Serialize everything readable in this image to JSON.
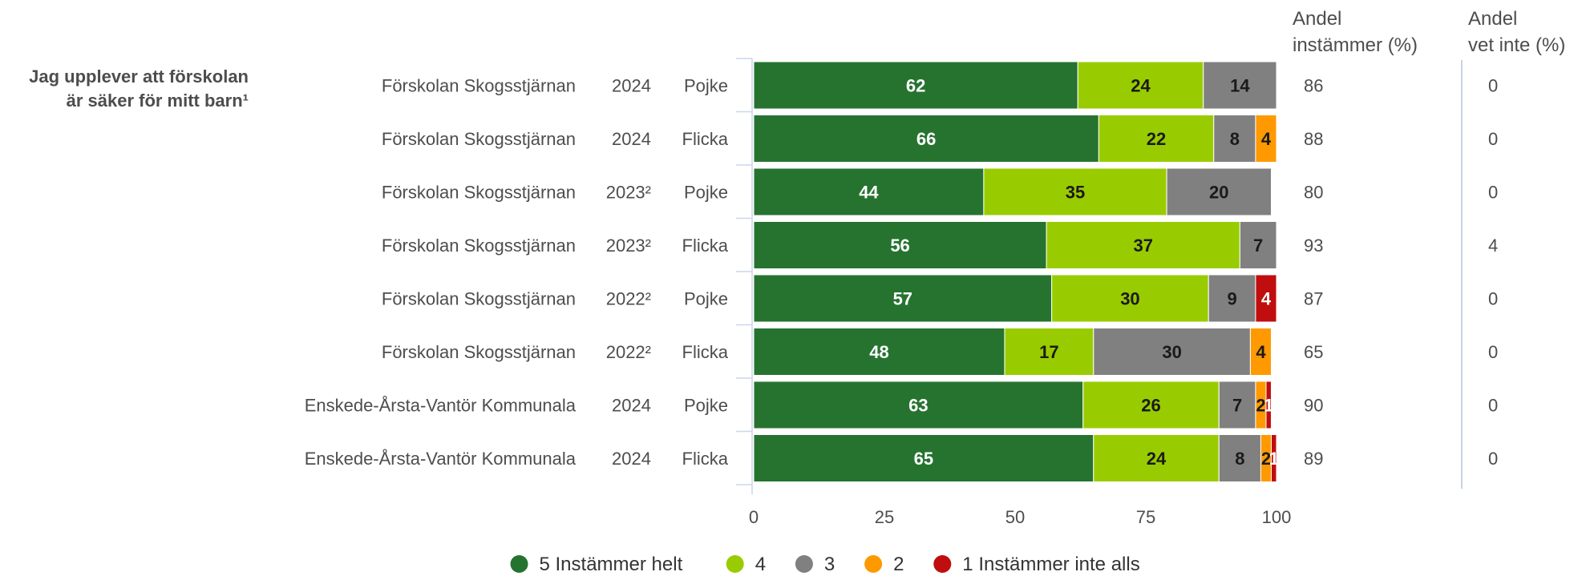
{
  "chart_data": {
    "type": "bar",
    "orientation": "horizontal",
    "stacked": true,
    "question": [
      "Jag upplever att förskolan",
      "är säker för mitt barn¹"
    ],
    "columns": {
      "agree": [
        "Andel",
        "instämmer (%)"
      ],
      "dontknow": [
        "Andel",
        "vet inte (%)"
      ]
    },
    "xlim": [
      0,
      100
    ],
    "xticks": [
      "0",
      "25",
      "50",
      "75",
      "100"
    ],
    "grid": false,
    "legend_position": "bottom",
    "series": [
      {
        "name": "5 Instämmer helt",
        "color": "#267330",
        "label_color": "#ffffff"
      },
      {
        "name": "4",
        "color": "#99cc00",
        "label_color": "#1a1a1a"
      },
      {
        "name": "3",
        "color": "#808080",
        "label_color": "#1a1a1a"
      },
      {
        "name": "2",
        "color": "#ff9900",
        "label_color": "#1a1a1a"
      },
      {
        "name": "1 Instämmer inte alls",
        "color": "#c00d0d",
        "label_color": "#ffffff"
      }
    ],
    "rows": [
      {
        "unit": "Förskolan Skogsstjärnan",
        "year": "2024",
        "gender": "Pojke",
        "values": [
          62,
          24,
          14,
          0,
          0
        ],
        "agree": "86",
        "dontknow": "0"
      },
      {
        "unit": "Förskolan Skogsstjärnan",
        "year": "2024",
        "gender": "Flicka",
        "values": [
          66,
          22,
          8,
          4,
          0
        ],
        "agree": "88",
        "dontknow": "0"
      },
      {
        "unit": "Förskolan Skogsstjärnan",
        "year": "2023²",
        "gender": "Pojke",
        "values": [
          44,
          35,
          20,
          0,
          0
        ],
        "agree": "80",
        "dontknow": "0"
      },
      {
        "unit": "Förskolan Skogsstjärnan",
        "year": "2023²",
        "gender": "Flicka",
        "values": [
          56,
          37,
          7,
          0,
          0
        ],
        "agree": "93",
        "dontknow": "4"
      },
      {
        "unit": "Förskolan Skogsstjärnan",
        "year": "2022²",
        "gender": "Pojke",
        "values": [
          57,
          30,
          9,
          0,
          4
        ],
        "agree": "87",
        "dontknow": "0"
      },
      {
        "unit": "Förskolan Skogsstjärnan",
        "year": "2022²",
        "gender": "Flicka",
        "values": [
          48,
          17,
          30,
          4,
          0
        ],
        "agree": "65",
        "dontknow": "0"
      },
      {
        "unit": "Enskede-Årsta-Vantör Kommunala",
        "year": "2024",
        "gender": "Pojke",
        "values": [
          63,
          26,
          7,
          2,
          1
        ],
        "agree": "90",
        "dontknow": "0"
      },
      {
        "unit": "Enskede-Årsta-Vantör Kommunala",
        "year": "2024",
        "gender": "Flicka",
        "values": [
          65,
          24,
          8,
          2,
          1
        ],
        "agree": "89",
        "dontknow": "0"
      }
    ]
  }
}
